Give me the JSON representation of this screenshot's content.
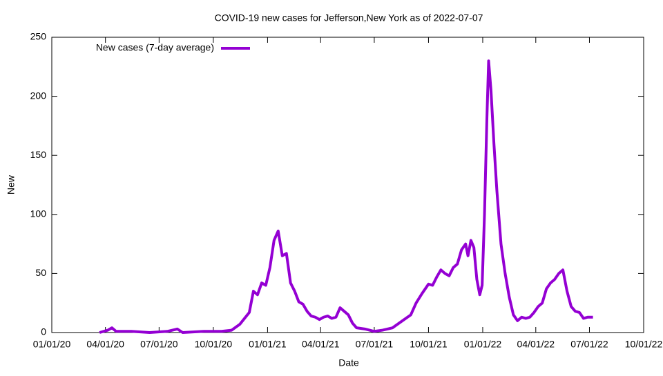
{
  "chart_data": {
    "type": "line",
    "title": "COVID-19 new cases for Jefferson,New York as of 2022-07-07",
    "x_label": "Date",
    "y_label": "New",
    "x": [
      "2020-03-22",
      "2020-04-05",
      "2020-04-12",
      "2020-04-19",
      "2020-05-15",
      "2020-06-15",
      "2020-07-15",
      "2020-08-01",
      "2020-08-10",
      "2020-09-15",
      "2020-10-15",
      "2020-11-01",
      "2020-11-15",
      "2020-12-01",
      "2020-12-08",
      "2020-12-15",
      "2020-12-22",
      "2020-12-29",
      "2021-01-05",
      "2021-01-12",
      "2021-01-19",
      "2021-01-26",
      "2021-02-02",
      "2021-02-09",
      "2021-02-16",
      "2021-02-23",
      "2021-03-02",
      "2021-03-09",
      "2021-03-16",
      "2021-03-23",
      "2021-03-30",
      "2021-04-06",
      "2021-04-13",
      "2021-04-20",
      "2021-04-27",
      "2021-05-04",
      "2021-05-11",
      "2021-05-18",
      "2021-05-25",
      "2021-06-01",
      "2021-06-15",
      "2021-07-01",
      "2021-07-15",
      "2021-08-01",
      "2021-08-15",
      "2021-09-01",
      "2021-09-10",
      "2021-09-20",
      "2021-10-01",
      "2021-10-08",
      "2021-10-15",
      "2021-10-22",
      "2021-10-29",
      "2021-11-05",
      "2021-11-12",
      "2021-11-19",
      "2021-11-26",
      "2021-12-03",
      "2021-12-07",
      "2021-12-12",
      "2021-12-17",
      "2021-12-22",
      "2021-12-27",
      "2021-12-31",
      "2022-01-04",
      "2022-01-08",
      "2022-01-11",
      "2022-01-15",
      "2022-01-20",
      "2022-01-25",
      "2022-02-01",
      "2022-02-08",
      "2022-02-15",
      "2022-02-22",
      "2022-03-01",
      "2022-03-08",
      "2022-03-15",
      "2022-03-22",
      "2022-03-29",
      "2022-04-05",
      "2022-04-12",
      "2022-04-19",
      "2022-04-26",
      "2022-05-03",
      "2022-05-10",
      "2022-05-17",
      "2022-05-24",
      "2022-05-31",
      "2022-06-07",
      "2022-06-14",
      "2022-06-21",
      "2022-06-28",
      "2022-07-07"
    ],
    "series": [
      {
        "name": "New cases (7-day average)",
        "color": "#9400d3",
        "values": [
          0,
          2,
          4,
          1,
          1,
          0,
          1,
          3,
          0,
          1,
          1,
          2,
          7,
          17,
          35,
          32,
          42,
          40,
          55,
          78,
          86,
          65,
          67,
          42,
          35,
          26,
          24,
          18,
          14,
          13,
          11,
          13,
          14,
          12,
          13,
          21,
          18,
          15,
          8,
          4,
          3,
          1,
          2,
          4,
          9,
          15,
          25,
          33,
          41,
          40,
          47,
          53,
          50,
          48,
          55,
          58,
          70,
          75,
          65,
          78,
          72,
          45,
          32,
          40,
          100,
          180,
          230,
          205,
          160,
          120,
          75,
          50,
          30,
          15,
          10,
          13,
          12,
          13,
          17,
          22,
          25,
          37,
          42,
          45,
          50,
          53,
          35,
          22,
          18,
          17,
          12,
          13,
          13
        ]
      }
    ],
    "xlim": [
      "2020-01-01",
      "2022-10-01"
    ],
    "xticks": [
      {
        "value": "2020-01-01",
        "label": "01/01/20"
      },
      {
        "value": "2020-04-01",
        "label": "04/01/20"
      },
      {
        "value": "2020-07-01",
        "label": "07/01/20"
      },
      {
        "value": "2020-10-01",
        "label": "10/01/20"
      },
      {
        "value": "2021-01-01",
        "label": "01/01/21"
      },
      {
        "value": "2021-04-01",
        "label": "04/01/21"
      },
      {
        "value": "2021-07-01",
        "label": "07/01/21"
      },
      {
        "value": "2021-10-01",
        "label": "10/01/21"
      },
      {
        "value": "2022-01-01",
        "label": "01/01/22"
      },
      {
        "value": "2022-04-01",
        "label": "04/01/22"
      },
      {
        "value": "2022-07-01",
        "label": "07/01/22"
      },
      {
        "value": "2022-10-01",
        "label": "10/01/22"
      }
    ],
    "ylim": [
      0,
      250
    ],
    "yticks": [
      0,
      50,
      100,
      150,
      200,
      250
    ],
    "legend": "top-left",
    "grid": false
  }
}
